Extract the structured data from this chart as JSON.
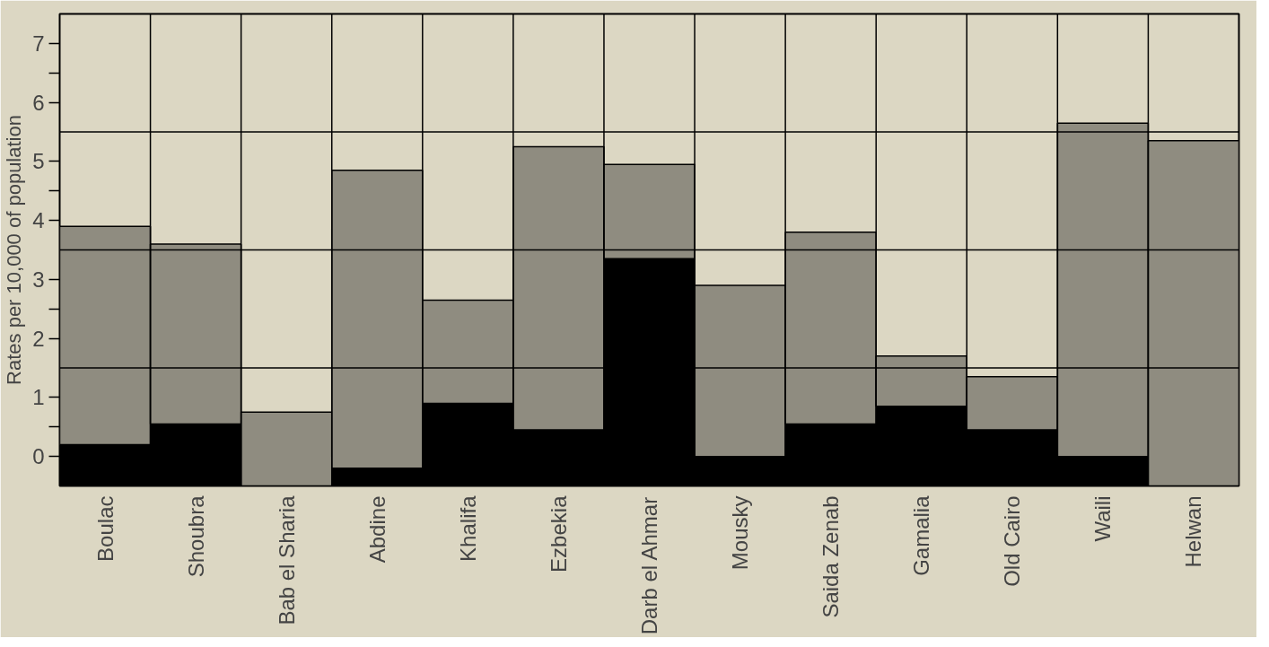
{
  "chart_data": {
    "type": "bar",
    "stacked": true,
    "ylabel": "Rates per 10,000 of population",
    "categories": [
      "Boulac",
      "Shoubra",
      "Bab el Sharia",
      "Abdine",
      "Khalifa",
      "Ezbekia",
      "Darb el Ahmar",
      "Mousky",
      "Saida Zenab",
      "Gamalia",
      "Old Cairo",
      "Waili",
      "Helwan"
    ],
    "series": [
      {
        "color": "#000000",
        "values": [
          0.7,
          1.05,
          0,
          0.3,
          1.4,
          0.95,
          3.85,
          0.5,
          1.05,
          1.35,
          0.95,
          0.5,
          0
        ]
      },
      {
        "color": "#8f8c80",
        "values": [
          3.7,
          3.05,
          1.25,
          5.05,
          1.75,
          4.8,
          1.6,
          2.9,
          3.25,
          0.85,
          0.9,
          5.65,
          5.85
        ]
      }
    ],
    "ylim": [
      0,
      8
    ],
    "yticks": [
      {
        "value": 0.5,
        "label": "0"
      },
      {
        "value": 1,
        "label": null
      },
      {
        "value": 1.5,
        "label": "1"
      },
      {
        "value": 2.5,
        "label": "2"
      },
      {
        "value": 3,
        "label": null
      },
      {
        "value": 3.5,
        "label": "3"
      },
      {
        "value": 4.5,
        "label": "4"
      },
      {
        "value": 5,
        "label": null
      },
      {
        "value": 5.5,
        "label": "5"
      },
      {
        "value": 6.5,
        "label": "6"
      },
      {
        "value": 7,
        "label": null
      },
      {
        "value": 7.5,
        "label": "7"
      }
    ],
    "ref_lines": [
      {
        "axis": "y",
        "value": 2,
        "color": "#000000"
      },
      {
        "axis": "y",
        "value": 4,
        "color": "#000000"
      },
      {
        "axis": "y",
        "value": 6,
        "color": "#000000"
      }
    ],
    "grid": false
  }
}
